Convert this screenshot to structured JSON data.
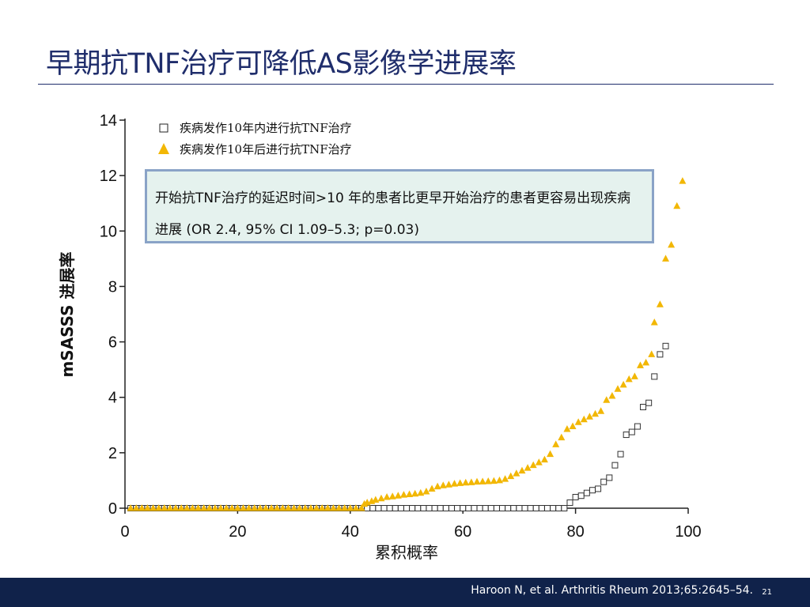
{
  "slide": {
    "title": "早期抗TNF治疗可降低AS影像学进展率",
    "annotation": "开始抗TNF治疗的延迟时间>10 年的患者比更早开始治疗的患者更容易出现疾病进展 (OR 2.4, 95% CI 1.09–5.3; p=0.03)",
    "citation": "Haroon N, et al. Arthritis Rheum 2013;65:2645–54.",
    "slide_number": "21",
    "colors": {
      "title": "#1f2d6b",
      "footer": "#10224a",
      "triangle": "#f2b705",
      "square": "#333333",
      "box_border": "#8aa3c7",
      "box_fill": "#e5f2ee"
    }
  },
  "chart_data": {
    "type": "scatter",
    "xlabel": "累积概率",
    "ylabel": "mSASSS 进展率",
    "xlim": [
      0,
      100
    ],
    "ylim": [
      0,
      14
    ],
    "xticks": [
      "0",
      "20",
      "40",
      "60",
      "80",
      "100"
    ],
    "yticks": [
      "0",
      "2",
      "4",
      "6",
      "8",
      "10",
      "12",
      "14"
    ],
    "grid": false,
    "legend_position": "top-left",
    "series": [
      {
        "name": "疾病发作10年内进行抗TNF治疗",
        "marker": "square",
        "color": "#333333",
        "points": [
          [
            1,
            0
          ],
          [
            2,
            0
          ],
          [
            3,
            0
          ],
          [
            4,
            0
          ],
          [
            5,
            0
          ],
          [
            6,
            0
          ],
          [
            7,
            0
          ],
          [
            8,
            0
          ],
          [
            9,
            0
          ],
          [
            10,
            0
          ],
          [
            11,
            0
          ],
          [
            12,
            0
          ],
          [
            13,
            0
          ],
          [
            14,
            0
          ],
          [
            15,
            0
          ],
          [
            16,
            0
          ],
          [
            17,
            0
          ],
          [
            18,
            0
          ],
          [
            19,
            0
          ],
          [
            20,
            0
          ],
          [
            21,
            0
          ],
          [
            22,
            0
          ],
          [
            23,
            0
          ],
          [
            24,
            0
          ],
          [
            25,
            0
          ],
          [
            26,
            0
          ],
          [
            27,
            0
          ],
          [
            28,
            0
          ],
          [
            29,
            0
          ],
          [
            30,
            0
          ],
          [
            31,
            0
          ],
          [
            32,
            0
          ],
          [
            33,
            0
          ],
          [
            34,
            0
          ],
          [
            35,
            0
          ],
          [
            36,
            0
          ],
          [
            37,
            0
          ],
          [
            38,
            0
          ],
          [
            39,
            0
          ],
          [
            40,
            0
          ],
          [
            41,
            0
          ],
          [
            42,
            0
          ],
          [
            43,
            0
          ],
          [
            44,
            0
          ],
          [
            45,
            0
          ],
          [
            46,
            0
          ],
          [
            47,
            0
          ],
          [
            48,
            0
          ],
          [
            49,
            0
          ],
          [
            50,
            0
          ],
          [
            51,
            0
          ],
          [
            52,
            0
          ],
          [
            53,
            0
          ],
          [
            54,
            0
          ],
          [
            55,
            0
          ],
          [
            56,
            0
          ],
          [
            57,
            0
          ],
          [
            58,
            0
          ],
          [
            59,
            0
          ],
          [
            60,
            0
          ],
          [
            61,
            0
          ],
          [
            62,
            0
          ],
          [
            63,
            0
          ],
          [
            64,
            0
          ],
          [
            65,
            0
          ],
          [
            66,
            0
          ],
          [
            67,
            0
          ],
          [
            68,
            0
          ],
          [
            69,
            0
          ],
          [
            70,
            0
          ],
          [
            71,
            0
          ],
          [
            72,
            0
          ],
          [
            73,
            0
          ],
          [
            74,
            0
          ],
          [
            75,
            0
          ],
          [
            76,
            0
          ],
          [
            77,
            0
          ],
          [
            78,
            0
          ],
          [
            79,
            0.2
          ],
          [
            80,
            0.4
          ],
          [
            81,
            0.45
          ],
          [
            82,
            0.55
          ],
          [
            83,
            0.65
          ],
          [
            84,
            0.7
          ],
          [
            85,
            0.95
          ],
          [
            86,
            1.1
          ],
          [
            87,
            1.55
          ],
          [
            88,
            1.95
          ],
          [
            89,
            2.65
          ],
          [
            90,
            2.75
          ],
          [
            91,
            2.95
          ],
          [
            92,
            3.65
          ],
          [
            93,
            3.8
          ],
          [
            94,
            4.75
          ],
          [
            95,
            5.55
          ],
          [
            96,
            5.85
          ]
        ]
      },
      {
        "name": "疾病发作10年后进行抗TNF治疗",
        "marker": "triangle",
        "color": "#f2b705",
        "points": [
          [
            1,
            0
          ],
          [
            2,
            0
          ],
          [
            3,
            0
          ],
          [
            4,
            0
          ],
          [
            5,
            0
          ],
          [
            6,
            0
          ],
          [
            7,
            0
          ],
          [
            8,
            0
          ],
          [
            9,
            0
          ],
          [
            10,
            0
          ],
          [
            11,
            0
          ],
          [
            12,
            0
          ],
          [
            13,
            0
          ],
          [
            14,
            0
          ],
          [
            15,
            0
          ],
          [
            16,
            0
          ],
          [
            17,
            0
          ],
          [
            18,
            0
          ],
          [
            19,
            0
          ],
          [
            20,
            0
          ],
          [
            21,
            0
          ],
          [
            22,
            0
          ],
          [
            23,
            0
          ],
          [
            24,
            0
          ],
          [
            25,
            0
          ],
          [
            26,
            0
          ],
          [
            27,
            0
          ],
          [
            28,
            0
          ],
          [
            29,
            0
          ],
          [
            30,
            0
          ],
          [
            31,
            0
          ],
          [
            32,
            0
          ],
          [
            33,
            0
          ],
          [
            34,
            0
          ],
          [
            35,
            0
          ],
          [
            36,
            0
          ],
          [
            37,
            0
          ],
          [
            38,
            0
          ],
          [
            39,
            0
          ],
          [
            40,
            0
          ],
          [
            41,
            0
          ],
          [
            42,
            0
          ],
          [
            42.5,
            0.15
          ],
          [
            43,
            0.2
          ],
          [
            43.8,
            0.25
          ],
          [
            44.5,
            0.3
          ],
          [
            45.5,
            0.35
          ],
          [
            46.5,
            0.4
          ],
          [
            47.5,
            0.42
          ],
          [
            48.5,
            0.45
          ],
          [
            49.5,
            0.48
          ],
          [
            50.5,
            0.5
          ],
          [
            51.5,
            0.52
          ],
          [
            52.5,
            0.55
          ],
          [
            53.5,
            0.6
          ],
          [
            54.5,
            0.7
          ],
          [
            55.5,
            0.78
          ],
          [
            56.5,
            0.82
          ],
          [
            57.5,
            0.85
          ],
          [
            58.5,
            0.88
          ],
          [
            59.5,
            0.9
          ],
          [
            60.5,
            0.92
          ],
          [
            61.5,
            0.93
          ],
          [
            62.5,
            0.95
          ],
          [
            63.5,
            0.96
          ],
          [
            64.5,
            0.97
          ],
          [
            65.5,
            0.98
          ],
          [
            66.5,
            1.0
          ],
          [
            67.5,
            1.05
          ],
          [
            68.5,
            1.15
          ],
          [
            69.5,
            1.25
          ],
          [
            70.5,
            1.35
          ],
          [
            71.5,
            1.45
          ],
          [
            72.5,
            1.55
          ],
          [
            73.5,
            1.65
          ],
          [
            74.5,
            1.75
          ],
          [
            75.5,
            1.95
          ],
          [
            76.5,
            2.3
          ],
          [
            77.5,
            2.55
          ],
          [
            78.5,
            2.85
          ],
          [
            79.5,
            2.95
          ],
          [
            80.5,
            3.1
          ],
          [
            81.5,
            3.2
          ],
          [
            82.5,
            3.3
          ],
          [
            83.5,
            3.4
          ],
          [
            84.5,
            3.5
          ],
          [
            85.5,
            3.9
          ],
          [
            86.5,
            4.05
          ],
          [
            87.5,
            4.3
          ],
          [
            88.5,
            4.45
          ],
          [
            89.5,
            4.65
          ],
          [
            90.5,
            4.75
          ],
          [
            91.5,
            5.15
          ],
          [
            92.5,
            5.25
          ],
          [
            93.5,
            5.55
          ],
          [
            94,
            6.7
          ],
          [
            95,
            7.35
          ],
          [
            96,
            9.0
          ],
          [
            97,
            9.5
          ],
          [
            98,
            10.9
          ],
          [
            99,
            11.8
          ]
        ]
      }
    ]
  }
}
